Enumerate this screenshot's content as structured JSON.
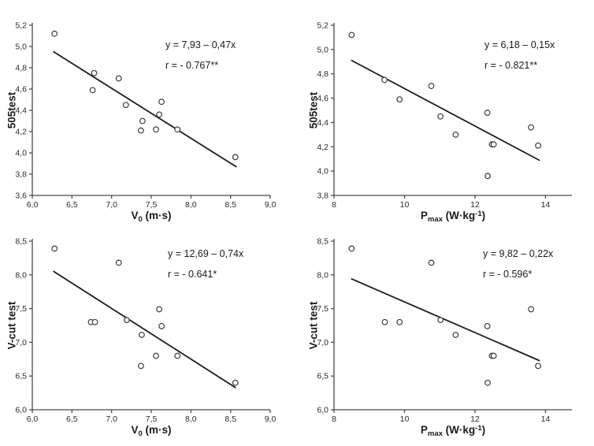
{
  "colors": {
    "background": "#ffffff",
    "axis": "#4a4a4a",
    "point_stroke": "#3c3c3c",
    "trend_line": "#1b1b1b",
    "text": "#1a1a1a"
  },
  "chart_data": [
    {
      "type": "scatter",
      "ylabel": "505test",
      "xlabel_parts": {
        "base": "V",
        "sub": "0",
        "unit_pre": " (m·s)",
        "sup": "",
        "unit_post": ""
      },
      "equation": "y = 7,93 – 0,47x",
      "r_label": "r = - 0.767**",
      "xlim": [
        6.0,
        9.0
      ],
      "ylim": [
        3.6,
        5.2
      ],
      "xtick_values": [
        6.0,
        6.5,
        7.0,
        7.5,
        8.0,
        8.5,
        9.0
      ],
      "xtick_labels": [
        "6,0",
        "6,5",
        "7,0",
        "7,5",
        "8,0",
        "8,5",
        "9,0"
      ],
      "ytick_values": [
        3.6,
        3.8,
        4.0,
        4.2,
        4.4,
        4.6,
        4.8,
        5.0,
        5.2
      ],
      "ytick_labels": [
        "3,6",
        "3,8",
        "4,0",
        "4,2",
        "4,4",
        "4,6",
        "4,8",
        "5,0",
        "5,2"
      ],
      "points": [
        [
          6.28,
          5.12
        ],
        [
          6.76,
          4.59
        ],
        [
          6.78,
          4.75
        ],
        [
          7.09,
          4.7
        ],
        [
          7.18,
          4.45
        ],
        [
          7.37,
          4.21
        ],
        [
          7.39,
          4.3
        ],
        [
          7.56,
          4.22
        ],
        [
          7.6,
          4.36
        ],
        [
          7.63,
          4.48
        ],
        [
          7.83,
          4.22
        ],
        [
          8.56,
          3.96
        ]
      ],
      "trend": {
        "x1": 6.27,
        "y1": 4.95,
        "x2": 8.57,
        "y2": 3.87
      }
    },
    {
      "type": "scatter",
      "ylabel": "505test",
      "xlabel_parts": {
        "base": "P",
        "sub": "max",
        "unit_pre": " (W·kg",
        "sup": "-1",
        "unit_post": ")"
      },
      "equation": "y = 6,18 – 0,15x",
      "r_label": "r = - 0.821**",
      "xlim": [
        8.0,
        14.75
      ],
      "ylim": [
        3.8,
        5.2
      ],
      "xtick_values": [
        8,
        10,
        12,
        14
      ],
      "xtick_labels": [
        "8",
        "10",
        "12",
        "14"
      ],
      "ytick_values": [
        3.8,
        4.0,
        4.2,
        4.4,
        4.6,
        4.8,
        5.0,
        5.2
      ],
      "ytick_labels": [
        "3,8",
        "4,0",
        "4,2",
        "4,4",
        "4,6",
        "4,8",
        "5,0",
        "5,2"
      ],
      "points": [
        [
          8.5,
          5.12
        ],
        [
          9.43,
          4.75
        ],
        [
          9.86,
          4.59
        ],
        [
          10.76,
          4.7
        ],
        [
          11.02,
          4.45
        ],
        [
          11.45,
          4.3
        ],
        [
          12.35,
          4.48
        ],
        [
          12.36,
          3.96
        ],
        [
          12.48,
          4.22
        ],
        [
          12.53,
          4.22
        ],
        [
          13.59,
          4.36
        ],
        [
          13.79,
          4.21
        ]
      ],
      "trend": {
        "x1": 8.5,
        "y1": 4.91,
        "x2": 13.82,
        "y2": 4.09
      }
    },
    {
      "type": "scatter",
      "ylabel": "V-cut test",
      "xlabel_parts": {
        "base": "V",
        "sub": "0",
        "unit_pre": " (m·s)",
        "sup": "",
        "unit_post": ""
      },
      "equation": "y = 12,69 – 0,74x",
      "r_label": "r = - 0.641*",
      "xlim": [
        6.0,
        9.0
      ],
      "ylim": [
        6.0,
        8.5
      ],
      "xtick_values": [
        6.0,
        6.5,
        7.0,
        7.5,
        8.0,
        8.5,
        9.0
      ],
      "xtick_labels": [
        "6,0",
        "6,5",
        "7,0",
        "7,5",
        "8,0",
        "8,5",
        "9,0"
      ],
      "ytick_values": [
        6.0,
        6.5,
        7.0,
        7.5,
        8.0,
        8.5
      ],
      "ytick_labels": [
        "6,0",
        "6,5",
        "7,0",
        "7,5",
        "8,0",
        "8,5"
      ],
      "points": [
        [
          6.28,
          8.39
        ],
        [
          6.74,
          7.3
        ],
        [
          6.79,
          7.3
        ],
        [
          7.09,
          8.18
        ],
        [
          7.19,
          7.33
        ],
        [
          7.37,
          6.65
        ],
        [
          7.38,
          7.11
        ],
        [
          7.56,
          6.8
        ],
        [
          7.6,
          7.49
        ],
        [
          7.63,
          7.24
        ],
        [
          7.83,
          6.8
        ],
        [
          8.56,
          6.4
        ]
      ],
      "trend": {
        "x1": 6.27,
        "y1": 8.05,
        "x2": 8.56,
        "y2": 6.33
      }
    },
    {
      "type": "scatter",
      "ylabel": "V-cut test",
      "xlabel_parts": {
        "base": "P",
        "sub": "max",
        "unit_pre": " (W·kg",
        "sup": "-1",
        "unit_post": ")"
      },
      "equation": "y = 9,82 – 0,22x",
      "r_label": "r = - 0.596*",
      "xlim": [
        8.0,
        14.75
      ],
      "ylim": [
        6.0,
        8.5
      ],
      "xtick_values": [
        8,
        10,
        12,
        14
      ],
      "xtick_labels": [
        "8",
        "10",
        "12",
        "14"
      ],
      "ytick_values": [
        6.0,
        6.5,
        7.0,
        7.5,
        8.0,
        8.5
      ],
      "ytick_labels": [
        "6,0",
        "6,5",
        "7,0",
        "7,5",
        "8,0",
        "8,5"
      ],
      "points": [
        [
          8.5,
          8.39
        ],
        [
          9.44,
          7.3
        ],
        [
          9.86,
          7.3
        ],
        [
          10.76,
          8.18
        ],
        [
          11.02,
          7.33
        ],
        [
          11.45,
          7.11
        ],
        [
          12.35,
          7.24
        ],
        [
          12.36,
          6.4
        ],
        [
          12.48,
          6.8
        ],
        [
          12.53,
          6.8
        ],
        [
          13.59,
          7.49
        ],
        [
          13.79,
          6.65
        ]
      ],
      "trend": {
        "x1": 8.5,
        "y1": 7.94,
        "x2": 13.82,
        "y2": 6.73
      }
    }
  ]
}
